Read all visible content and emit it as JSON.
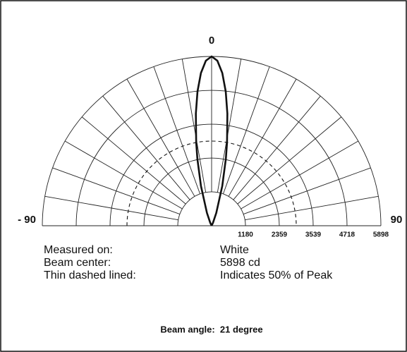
{
  "chart_data": {
    "type": "polar",
    "angle_ticks": [
      {
        "value": -90,
        "label": "- 90"
      },
      0,
      90
    ],
    "angle_grid": [
      -90,
      -80,
      -70,
      -60,
      -50,
      -40,
      -30,
      -20,
      -10,
      0,
      10,
      20,
      30,
      40,
      50,
      60,
      70,
      80,
      90
    ],
    "rlim": [
      0,
      5898
    ],
    "rticks": [
      1180,
      2359,
      3539,
      4718,
      5898
    ],
    "dashed_percent": 50,
    "series": [
      {
        "name": "White",
        "color": "#111111",
        "x": [
          -30,
          -25,
          -20,
          -15,
          -12,
          -10.5,
          -8,
          -6,
          -4,
          -2,
          0,
          2,
          4,
          6,
          8,
          10.5,
          12,
          15,
          20,
          25,
          30
        ],
        "values": [
          0,
          116,
          477,
          1435,
          2386,
          2949,
          3944,
          4704,
          5334,
          5752,
          5898,
          5752,
          5334,
          4704,
          3944,
          2949,
          2386,
          1435,
          477,
          116,
          0
        ]
      }
    ],
    "info": [
      [
        "Measured on:",
        "White"
      ],
      [
        "Beam center:",
        "5898 cd"
      ],
      [
        "Thin dashed lined:",
        "Indicates 50% of Peak"
      ]
    ],
    "footer": "Beam angle:  21 degree"
  }
}
